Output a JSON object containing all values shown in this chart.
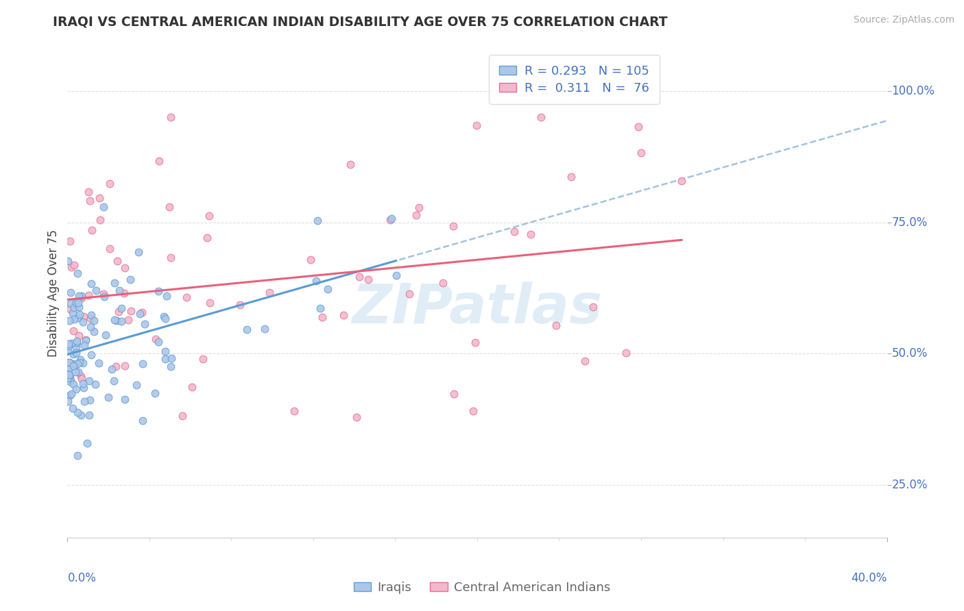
{
  "title": "IRAQI VS CENTRAL AMERICAN INDIAN DISABILITY AGE OVER 75 CORRELATION CHART",
  "source": "Source: ZipAtlas.com",
  "ylabel": "Disability Age Over 75",
  "xlim": [
    0.0,
    40.0
  ],
  "ylim": [
    15.0,
    108.0
  ],
  "ytick_values": [
    25.0,
    50.0,
    75.0,
    100.0
  ],
  "ytick_labels": [
    "25.0%",
    "50.0%",
    "75.0%",
    "100.0%"
  ],
  "xtick_values": [
    0.0,
    40.0
  ],
  "xtick_labels": [
    "0.0%",
    "40.0%"
  ],
  "iraqis_color": "#aec6e8",
  "iraqis_edge_color": "#5a9fd4",
  "central_american_color": "#f4b8cc",
  "central_american_edge_color": "#e07090",
  "iraqis_R": 0.293,
  "iraqis_N": 105,
  "central_american_R": 0.311,
  "central_american_N": 76,
  "legend_label_iraqis": "Iraqis",
  "legend_label_central": "Central American Indians",
  "trend_iraqis_color": "#5b9bd5",
  "trend_central_color": "#e8607a",
  "trend_dashed_color": "#8ab4d8",
  "watermark_text": "ZIPatlas",
  "watermark_color": "#c8dff0",
  "grid_color": "#e0e0e0",
  "grid_style": "--",
  "tick_color": "#4472c4",
  "ylabel_color": "#444444",
  "legend_text_color": "#4472c4",
  "bottom_legend_color": "#666666",
  "iraqis_seed": 12,
  "central_seed": 77
}
